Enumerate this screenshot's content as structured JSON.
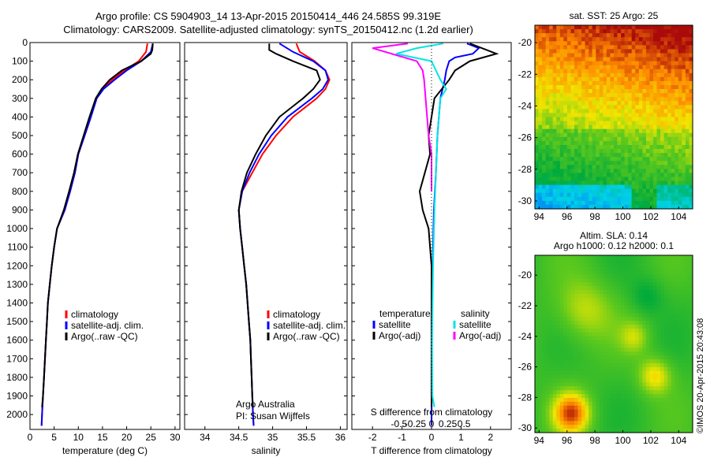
{
  "header": {
    "title_line1": "Argo profile: CS 5904903_14 13-Apr-2015 20150414_446 24.585S 99.319E",
    "title_line2": "Climatology: CARS2009. Satellite-adjusted climatology: synTS_20150412.nc (1.2d earlier)"
  },
  "footer": {
    "credit": "©IMOS 20-Apr-2015 20:43:08"
  },
  "colors": {
    "climatology": "#ff0000",
    "satellite_adj": "#0000ff",
    "argo": "#000000",
    "sal_satellite": "#00e5e5",
    "sal_argo": "#ff00ff"
  },
  "chart_data": [
    {
      "type": "line",
      "id": "temperature",
      "xlabel": "temperature (deg C)",
      "ylabel": "",
      "xlim": [
        0,
        31
      ],
      "ylim": [
        0,
        2080
      ],
      "y_inverted": true,
      "xticks": [
        0,
        5,
        10,
        15,
        20,
        25,
        30
      ],
      "yticks": [
        0,
        100,
        200,
        300,
        400,
        500,
        600,
        700,
        800,
        900,
        1000,
        1100,
        1200,
        1300,
        1400,
        1500,
        1600,
        1700,
        1800,
        1900,
        2000
      ],
      "legend": [
        "climatology",
        "satellite-adj. clim.",
        "Argo(..raw -QC)"
      ],
      "series": [
        {
          "name": "climatology",
          "color": "#ff0000",
          "points": [
            [
              24.3,
              5
            ],
            [
              24.0,
              50
            ],
            [
              22.5,
              100
            ],
            [
              19.5,
              150
            ],
            [
              17.0,
              200
            ],
            [
              15.0,
              250
            ],
            [
              13.8,
              300
            ],
            [
              12.6,
              400
            ],
            [
              11.3,
              500
            ],
            [
              10.0,
              600
            ],
            [
              9.3,
              700
            ],
            [
              8.3,
              800
            ],
            [
              7.2,
              900
            ],
            [
              5.6,
              1000
            ],
            [
              5.0,
              1100
            ],
            [
              4.5,
              1200
            ],
            [
              4.1,
              1300
            ],
            [
              3.7,
              1400
            ],
            [
              3.5,
              1500
            ],
            [
              3.3,
              1600
            ],
            [
              3.1,
              1700
            ],
            [
              2.9,
              1800
            ],
            [
              2.7,
              1900
            ],
            [
              2.5,
              2000
            ],
            [
              2.4,
              2060
            ]
          ]
        },
        {
          "name": "satellite-adj. clim.",
          "color": "#0000ff",
          "points": [
            [
              25.4,
              5
            ],
            [
              25.0,
              50
            ],
            [
              23.0,
              100
            ],
            [
              20.0,
              150
            ],
            [
              17.5,
              200
            ],
            [
              15.2,
              250
            ],
            [
              13.8,
              300
            ],
            [
              12.6,
              400
            ],
            [
              11.3,
              500
            ],
            [
              10.0,
              600
            ],
            [
              9.3,
              700
            ],
            [
              8.3,
              800
            ],
            [
              7.2,
              900
            ],
            [
              5.6,
              1000
            ],
            [
              5.0,
              1100
            ],
            [
              4.5,
              1200
            ],
            [
              4.1,
              1300
            ],
            [
              3.7,
              1400
            ],
            [
              3.5,
              1500
            ],
            [
              3.3,
              1600
            ],
            [
              3.1,
              1700
            ],
            [
              2.9,
              1800
            ],
            [
              2.7,
              1900
            ],
            [
              2.5,
              2000
            ],
            [
              2.4,
              2060
            ]
          ]
        },
        {
          "name": "Argo(..raw -QC)",
          "color": "#000000",
          "points": [
            [
              25.4,
              5
            ],
            [
              25.3,
              40
            ],
            [
              25.0,
              60
            ],
            [
              23.0,
              100
            ],
            [
              19.0,
              150
            ],
            [
              16.5,
              200
            ],
            [
              14.8,
              250
            ],
            [
              13.6,
              300
            ],
            [
              12.3,
              400
            ],
            [
              11.1,
              500
            ],
            [
              9.9,
              600
            ],
            [
              9.1,
              700
            ],
            [
              8.1,
              800
            ],
            [
              7.0,
              900
            ],
            [
              5.6,
              1000
            ],
            [
              5.0,
              1100
            ],
            [
              4.5,
              1200
            ],
            [
              4.1,
              1300
            ],
            [
              3.7,
              1400
            ],
            [
              3.5,
              1500
            ],
            [
              3.3,
              1600
            ],
            [
              3.1,
              1700
            ],
            [
              2.9,
              1800
            ],
            [
              2.7,
              1900
            ],
            [
              2.5,
              1960
            ]
          ]
        }
      ]
    },
    {
      "type": "line",
      "id": "salinity",
      "xlabel": "salinity",
      "ylabel": "",
      "xlim": [
        33.7,
        36.1
      ],
      "ylim": [
        0,
        2080
      ],
      "y_inverted": true,
      "xticks": [
        34,
        34.5,
        35,
        35.5,
        36
      ],
      "xtick_labels": [
        "34",
        "34.5",
        "35",
        "35.5",
        "36"
      ],
      "legend": [
        "climatology",
        "satellite-adj. clim.",
        "Argo(..raw -QC)"
      ],
      "annotation_line1": "Argo Australia",
      "annotation_line2": "PI: Susan Wijffels",
      "series": [
        {
          "name": "climatology",
          "color": "#ff0000",
          "points": [
            [
              35.35,
              5
            ],
            [
              35.4,
              50
            ],
            [
              35.62,
              100
            ],
            [
              35.78,
              150
            ],
            [
              35.84,
              200
            ],
            [
              35.78,
              250
            ],
            [
              35.65,
              300
            ],
            [
              35.3,
              400
            ],
            [
              35.05,
              500
            ],
            [
              34.85,
              600
            ],
            [
              34.7,
              700
            ],
            [
              34.55,
              800
            ],
            [
              34.5,
              900
            ],
            [
              34.52,
              1000
            ],
            [
              34.55,
              1100
            ],
            [
              34.58,
              1200
            ],
            [
              34.61,
              1300
            ],
            [
              34.63,
              1400
            ],
            [
              34.65,
              1500
            ],
            [
              34.67,
              1600
            ],
            [
              34.68,
              1700
            ],
            [
              34.69,
              1800
            ],
            [
              34.7,
              1900
            ],
            [
              34.71,
              2000
            ],
            [
              34.72,
              2060
            ]
          ]
        },
        {
          "name": "satellite-adj. clim.",
          "color": "#0000ff",
          "points": [
            [
              35.1,
              5
            ],
            [
              35.3,
              50
            ],
            [
              35.6,
              100
            ],
            [
              35.78,
              150
            ],
            [
              35.82,
              200
            ],
            [
              35.74,
              250
            ],
            [
              35.58,
              300
            ],
            [
              35.22,
              400
            ],
            [
              34.98,
              500
            ],
            [
              34.8,
              600
            ],
            [
              34.66,
              700
            ],
            [
              34.55,
              800
            ],
            [
              34.5,
              900
            ],
            [
              34.52,
              1000
            ],
            [
              34.55,
              1100
            ],
            [
              34.58,
              1200
            ],
            [
              34.61,
              1300
            ],
            [
              34.63,
              1400
            ],
            [
              34.65,
              1500
            ],
            [
              34.67,
              1600
            ],
            [
              34.68,
              1700
            ],
            [
              34.69,
              1800
            ],
            [
              34.7,
              1900
            ],
            [
              34.71,
              2000
            ],
            [
              34.72,
              2060
            ]
          ]
        },
        {
          "name": "Argo(..raw -QC)",
          "color": "#000000",
          "points": [
            [
              34.95,
              5
            ],
            [
              34.95,
              40
            ],
            [
              35.05,
              60
            ],
            [
              35.3,
              100
            ],
            [
              35.65,
              150
            ],
            [
              35.7,
              200
            ],
            [
              35.6,
              250
            ],
            [
              35.45,
              300
            ],
            [
              35.1,
              400
            ],
            [
              34.9,
              500
            ],
            [
              34.75,
              600
            ],
            [
              34.62,
              700
            ],
            [
              34.54,
              800
            ],
            [
              34.5,
              900
            ],
            [
              34.52,
              1000
            ],
            [
              34.55,
              1100
            ],
            [
              34.58,
              1200
            ],
            [
              34.61,
              1300
            ],
            [
              34.63,
              1400
            ],
            [
              34.65,
              1500
            ],
            [
              34.67,
              1600
            ],
            [
              34.68,
              1700
            ],
            [
              34.69,
              1800
            ],
            [
              34.7,
              1900
            ],
            [
              34.71,
              1960
            ]
          ]
        }
      ]
    },
    {
      "type": "line",
      "id": "difference",
      "xlabel": "T difference from climatology",
      "top_label": "S difference from climatology",
      "xlim": [
        -2.7,
        2.7
      ],
      "ylim": [
        0,
        2080
      ],
      "y_inverted": true,
      "xticks_T": [
        -2,
        -1,
        0,
        1,
        2
      ],
      "xticks_S_labels": [
        "-0.5",
        "-0.25",
        "0",
        "0.25",
        "0.5"
      ],
      "legend_temperature_title": "temperature",
      "legend_salinity_title": "salinity",
      "legend": [
        "satellite",
        "Argo(-adj)",
        "satellite",
        "Argo(-adj)"
      ],
      "series": [
        {
          "name": "temperature satellite",
          "color": "#0000ff",
          "points": [
            [
              1.2,
              5
            ],
            [
              1.6,
              30
            ],
            [
              1.4,
              60
            ],
            [
              0.8,
              80
            ],
            [
              0.6,
              100
            ],
            [
              0.5,
              150
            ],
            [
              0.45,
              200
            ],
            [
              0.3,
              300
            ],
            [
              0.2,
              500
            ],
            [
              0.15,
              700
            ],
            [
              0.08,
              900
            ],
            [
              0.05,
              1100
            ],
            [
              0.02,
              1500
            ],
            [
              0.0,
              2060
            ]
          ]
        },
        {
          "name": "temperature Argo(-adj)",
          "color": "#000000",
          "points": [
            [
              1.3,
              5
            ],
            [
              2.2,
              60
            ],
            [
              1.3,
              100
            ],
            [
              0.8,
              150
            ],
            [
              0.6,
              200
            ],
            [
              0.1,
              300
            ],
            [
              0.0,
              400
            ],
            [
              -0.1,
              500
            ],
            [
              -0.05,
              600
            ],
            [
              -0.4,
              800
            ],
            [
              -0.3,
              900
            ],
            [
              -0.1,
              1000
            ],
            [
              0.0,
              1200
            ],
            [
              0.0,
              1960
            ]
          ]
        },
        {
          "name": "salinity satellite",
          "color": "#00e5e5",
          "points": [
            [
              0.4,
              5
            ],
            [
              -0.5,
              30
            ],
            [
              -1.2,
              60
            ],
            [
              0.0,
              100
            ],
            [
              0.3,
              200
            ],
            [
              0.5,
              250
            ],
            [
              0.3,
              300
            ],
            [
              0.2,
              500
            ],
            [
              0.15,
              700
            ],
            [
              0.1,
              900
            ],
            [
              0.05,
              1200
            ],
            [
              0.02,
              1600
            ],
            [
              0.03,
              1900
            ],
            [
              0.1,
              1960
            ]
          ]
        },
        {
          "name": "salinity Argo(-adj)",
          "color": "#ff00ff",
          "points": [
            [
              -0.8,
              5
            ],
            [
              -2.0,
              30
            ],
            [
              -0.5,
              100
            ],
            [
              -0.3,
              150
            ],
            [
              -0.25,
              200
            ],
            [
              -0.2,
              300
            ],
            [
              -0.15,
              400
            ],
            [
              -0.1,
              500
            ],
            [
              0.0,
              600
            ],
            [
              0.0,
              800
            ]
          ]
        }
      ]
    },
    {
      "type": "heatmap",
      "id": "sst_map",
      "title": "sat. SST: 25  Argo: 25",
      "xlim": [
        93.7,
        105.0
      ],
      "ylim": [
        -30.5,
        -18.9
      ],
      "xticks": [
        94,
        96,
        98,
        100,
        102,
        104
      ],
      "yticks": [
        -20,
        -22,
        -24,
        -26,
        -28,
        -30
      ]
    },
    {
      "type": "heatmap",
      "id": "sla_map",
      "title_line1": "Altim. SLA: 0.14",
      "title_line2": "Argo h1000: 0.12 h2000: 0.1",
      "xlim": [
        93.7,
        105.0
      ],
      "ylim": [
        -30.3,
        -18.7
      ],
      "xticks": [
        94,
        96,
        98,
        100,
        102,
        104
      ],
      "yticks": [
        -20,
        -22,
        -24,
        -26,
        -28,
        -30
      ]
    }
  ]
}
